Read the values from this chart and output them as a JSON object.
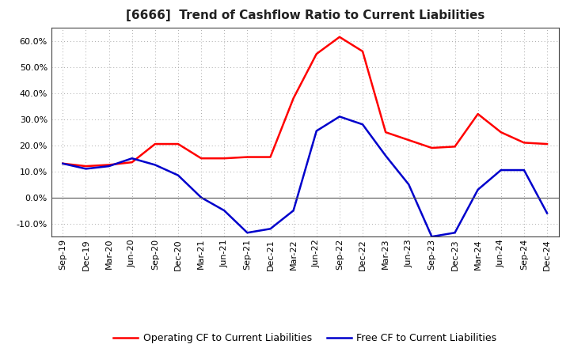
{
  "title": "[6666]  Trend of Cashflow Ratio to Current Liabilities",
  "x_labels": [
    "Sep-19",
    "Dec-19",
    "Mar-20",
    "Jun-20",
    "Sep-20",
    "Dec-20",
    "Mar-21",
    "Jun-21",
    "Sep-21",
    "Dec-21",
    "Mar-22",
    "Jun-22",
    "Sep-22",
    "Dec-22",
    "Mar-23",
    "Jun-23",
    "Sep-23",
    "Dec-23",
    "Mar-24",
    "Jun-24",
    "Sep-24",
    "Dec-24"
  ],
  "operating_cf": [
    13.0,
    12.0,
    12.5,
    13.5,
    20.5,
    20.5,
    15.0,
    15.0,
    15.5,
    15.5,
    38.0,
    55.0,
    61.5,
    56.0,
    25.0,
    22.0,
    19.0,
    19.5,
    32.0,
    25.0,
    21.0,
    20.5
  ],
  "free_cf": [
    13.0,
    11.0,
    12.0,
    15.0,
    12.5,
    8.5,
    0.0,
    -5.0,
    -13.5,
    -12.0,
    -5.0,
    25.5,
    31.0,
    28.0,
    16.0,
    5.0,
    -15.0,
    -13.5,
    3.0,
    10.5,
    10.5,
    -6.0
  ],
  "operating_color": "#ff0000",
  "free_color": "#0000cc",
  "ylim_min": -15,
  "ylim_max": 65,
  "yticks": [
    -10.0,
    0.0,
    10.0,
    20.0,
    30.0,
    40.0,
    50.0,
    60.0
  ],
  "background_color": "#ffffff",
  "plot_bg_color": "#ffffff",
  "grid_color": "#aaaaaa",
  "title_fontsize": 11,
  "title_color": "#222222",
  "legend_fontsize": 9,
  "tick_fontsize": 8,
  "line_width": 1.8
}
